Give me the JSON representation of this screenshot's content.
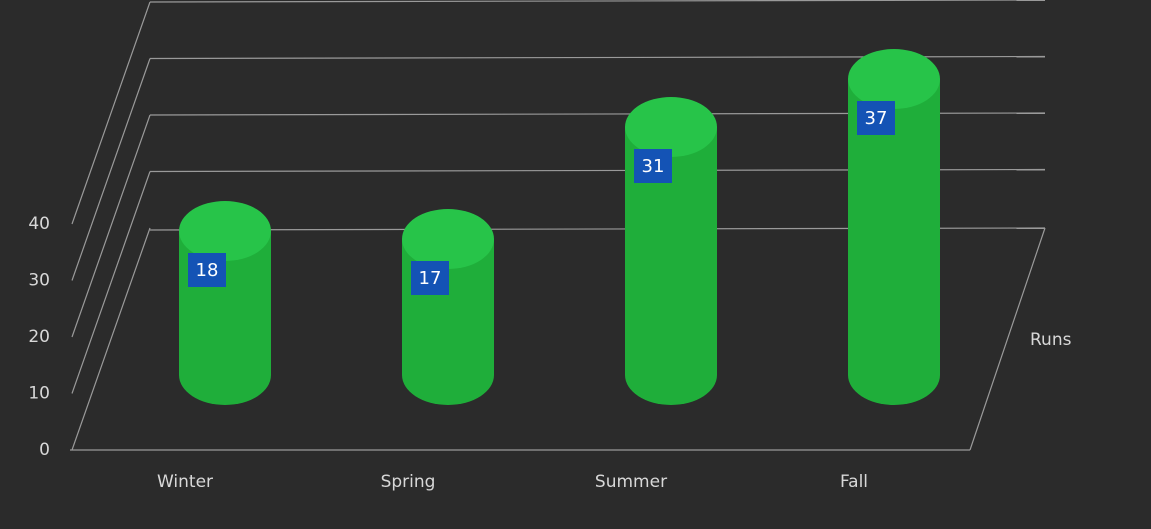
{
  "chart_data": {
    "type": "bar3d",
    "categories": [
      "Winter",
      "Spring",
      "Summer",
      "Fall"
    ],
    "series": [
      {
        "name": "Runs",
        "color": "#1fae3a",
        "values": [
          18,
          17,
          31,
          37
        ]
      }
    ],
    "ylim": [
      0,
      40
    ],
    "yticks": [
      0,
      10,
      20,
      30,
      40
    ],
    "grid": true,
    "legend": "right"
  }
}
